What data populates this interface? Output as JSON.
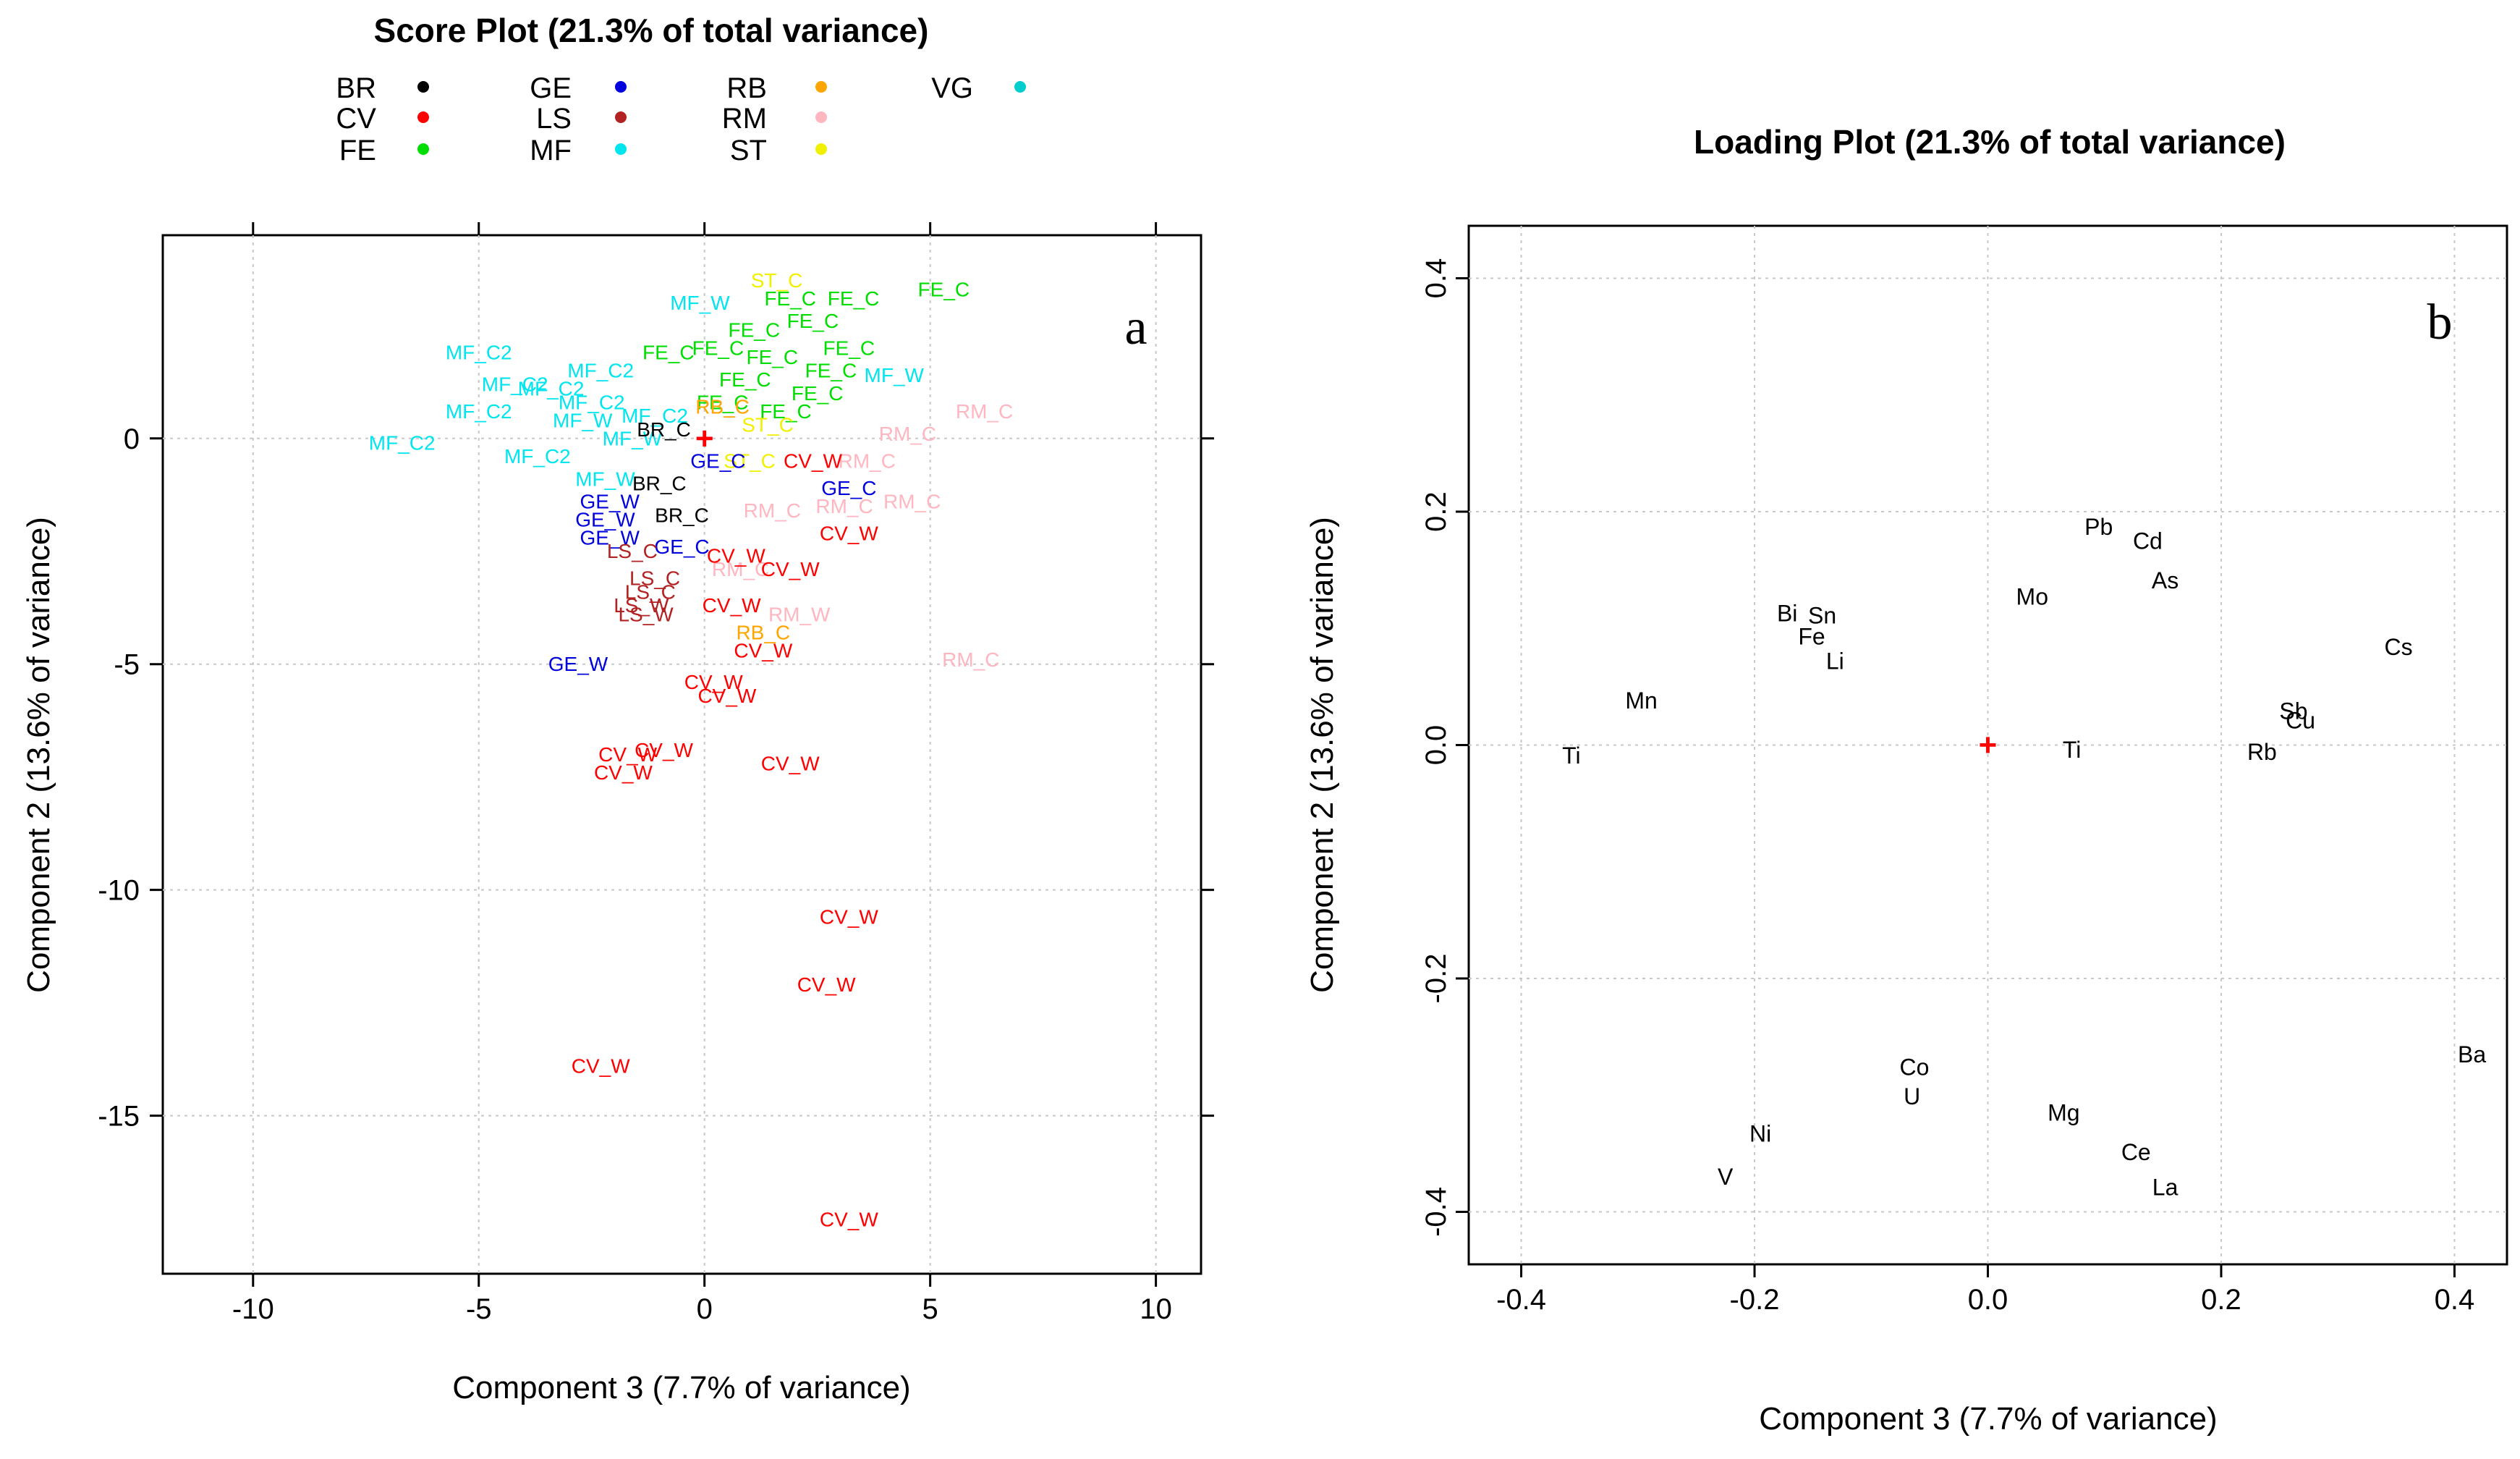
{
  "chart_data": [
    {
      "type": "scatter",
      "panel_label": "a",
      "title": "Score Plot (21.3% of total variance)",
      "xlabel": "Component 3 (7.7% of variance)",
      "ylabel": "Component 2 (13.6% of variance)",
      "xlim": [
        -12,
        11
      ],
      "ylim": [
        -18.5,
        4.5
      ],
      "xticks": [
        -10,
        -5,
        0,
        5,
        10
      ],
      "yticks": [
        0,
        -5,
        -10,
        -15
      ],
      "grid": true,
      "legend": [
        {
          "code": "BR",
          "color": "#000000"
        },
        {
          "code": "CV",
          "color": "#ff0000"
        },
        {
          "code": "FE",
          "color": "#00dd00"
        },
        {
          "code": "GE",
          "color": "#0000dd"
        },
        {
          "code": "LS",
          "color": "#b22222"
        },
        {
          "code": "MF",
          "color": "#00e5ee"
        },
        {
          "code": "RB",
          "color": "#ffa500"
        },
        {
          "code": "RM",
          "color": "#ffb6c1"
        },
        {
          "code": "ST",
          "color": "#f0f000"
        },
        {
          "code": "VG",
          "color": "#00cdcd"
        }
      ],
      "origin_marker": {
        "x": 0,
        "y": 0,
        "symbol": "+",
        "color": "#ff0000"
      },
      "points": [
        {
          "label": "MF_C2",
          "group": "MF",
          "x": -5.0,
          "y": 1.9
        },
        {
          "label": "MF_C2",
          "group": "MF",
          "x": -4.2,
          "y": 1.2
        },
        {
          "label": "MF_C2",
          "group": "MF",
          "x": -3.4,
          "y": 1.1
        },
        {
          "label": "MF_C2",
          "group": "MF",
          "x": -2.3,
          "y": 1.5
        },
        {
          "label": "MF_C2",
          "group": "MF",
          "x": -5.0,
          "y": 0.6
        },
        {
          "label": "MF_C2",
          "group": "MF",
          "x": -6.7,
          "y": -0.1
        },
        {
          "label": "MF_C2",
          "group": "MF",
          "x": -3.7,
          "y": -0.4
        },
        {
          "label": "MF_C2",
          "group": "MF",
          "x": -2.5,
          "y": 0.8
        },
        {
          "label": "MF_W",
          "group": "MF",
          "x": -0.1,
          "y": 3.0
        },
        {
          "label": "MF_W",
          "group": "MF",
          "x": 4.2,
          "y": 1.4
        },
        {
          "label": "MF_W",
          "group": "MF",
          "x": -2.7,
          "y": 0.4
        },
        {
          "label": "MF_W",
          "group": "MF",
          "x": -2.2,
          "y": -0.9
        },
        {
          "label": "MF_W",
          "group": "MF",
          "x": -1.6,
          "y": 0.0
        },
        {
          "label": "MF_C2",
          "group": "MF",
          "x": -1.1,
          "y": 0.5
        },
        {
          "label": "FE_C",
          "group": "FE",
          "x": 5.3,
          "y": 3.3
        },
        {
          "label": "FE_C",
          "group": "FE",
          "x": 3.3,
          "y": 3.1
        },
        {
          "label": "FE_C",
          "group": "FE",
          "x": 1.9,
          "y": 3.1
        },
        {
          "label": "FE_C",
          "group": "FE",
          "x": 2.4,
          "y": 2.6
        },
        {
          "label": "FE_C",
          "group": "FE",
          "x": 1.1,
          "y": 2.4
        },
        {
          "label": "FE_C",
          "group": "FE",
          "x": 0.3,
          "y": 2.0
        },
        {
          "label": "FE_C",
          "group": "FE",
          "x": 3.2,
          "y": 2.0
        },
        {
          "label": "FE_C",
          "group": "FE",
          "x": 1.5,
          "y": 1.8
        },
        {
          "label": "FE_C",
          "group": "FE",
          "x": -0.8,
          "y": 1.9
        },
        {
          "label": "FE_C",
          "group": "FE",
          "x": 2.8,
          "y": 1.5
        },
        {
          "label": "FE_C",
          "group": "FE",
          "x": 0.9,
          "y": 1.3
        },
        {
          "label": "FE_C",
          "group": "FE",
          "x": 2.5,
          "y": 1.0
        },
        {
          "label": "FE_C",
          "group": "FE",
          "x": 0.4,
          "y": 0.8
        },
        {
          "label": "FE_C",
          "group": "FE",
          "x": 1.8,
          "y": 0.6
        },
        {
          "label": "ST_C",
          "group": "ST",
          "x": 1.6,
          "y": 3.5
        },
        {
          "label": "ST_C",
          "group": "ST",
          "x": 1.4,
          "y": 0.3
        },
        {
          "label": "ST_C",
          "group": "ST",
          "x": 1.0,
          "y": -0.5
        },
        {
          "label": "RB_C",
          "group": "RB",
          "x": 0.4,
          "y": 0.7
        },
        {
          "label": "RB_C",
          "group": "RB",
          "x": 1.3,
          "y": -4.3
        },
        {
          "label": "RM_C",
          "group": "RM",
          "x": 6.2,
          "y": 0.6
        },
        {
          "label": "RM_C",
          "group": "RM",
          "x": 4.5,
          "y": 0.1
        },
        {
          "label": "RM_C",
          "group": "RM",
          "x": 3.6,
          "y": -0.5
        },
        {
          "label": "RM_C",
          "group": "RM",
          "x": 4.6,
          "y": -1.4
        },
        {
          "label": "RM_C",
          "group": "RM",
          "x": 3.1,
          "y": -1.5
        },
        {
          "label": "RM_C",
          "group": "RM",
          "x": 1.5,
          "y": -1.6
        },
        {
          "label": "RM_C",
          "group": "RM",
          "x": 0.8,
          "y": -2.9
        },
        {
          "label": "RM_W",
          "group": "RM",
          "x": 2.1,
          "y": -3.9
        },
        {
          "label": "RM_C",
          "group": "RM",
          "x": 5.9,
          "y": -4.9
        },
        {
          "label": "CV_W",
          "group": "CV",
          "x": 2.4,
          "y": -0.5
        },
        {
          "label": "CV_W",
          "group": "CV",
          "x": 3.2,
          "y": -2.1
        },
        {
          "label": "CV_W",
          "group": "CV",
          "x": 0.7,
          "y": -2.6
        },
        {
          "label": "CV_W",
          "group": "CV",
          "x": 1.9,
          "y": -2.9
        },
        {
          "label": "CV_W",
          "group": "CV",
          "x": 0.6,
          "y": -3.7
        },
        {
          "label": "CV_W",
          "group": "CV",
          "x": 1.3,
          "y": -4.7
        },
        {
          "label": "CV_W",
          "group": "CV",
          "x": 0.2,
          "y": -5.4
        },
        {
          "label": "CV_W",
          "group": "CV",
          "x": 0.5,
          "y": -5.7
        },
        {
          "label": "CV_W",
          "group": "CV",
          "x": -0.9,
          "y": -6.9
        },
        {
          "label": "CV_W",
          "group": "CV",
          "x": -1.7,
          "y": -7.0
        },
        {
          "label": "CV_W",
          "group": "CV",
          "x": -1.8,
          "y": -7.4
        },
        {
          "label": "CV_W",
          "group": "CV",
          "x": 1.9,
          "y": -7.2
        },
        {
          "label": "CV_W",
          "group": "CV",
          "x": 3.2,
          "y": -10.6
        },
        {
          "label": "CV_W",
          "group": "CV",
          "x": 2.7,
          "y": -12.1
        },
        {
          "label": "CV_W",
          "group": "CV",
          "x": -2.3,
          "y": -13.9
        },
        {
          "label": "CV_W",
          "group": "CV",
          "x": 3.2,
          "y": -17.3
        },
        {
          "label": "GE_C",
          "group": "GE",
          "x": 3.2,
          "y": -1.1
        },
        {
          "label": "GE_C",
          "group": "GE",
          "x": 0.3,
          "y": -0.5
        },
        {
          "label": "GE_C",
          "group": "GE",
          "x": -0.5,
          "y": -2.4
        },
        {
          "label": "GE_W",
          "group": "GE",
          "x": -2.1,
          "y": -1.4
        },
        {
          "label": "GE_W",
          "group": "GE",
          "x": -2.2,
          "y": -1.8
        },
        {
          "label": "GE_W",
          "group": "GE",
          "x": -2.1,
          "y": -2.2
        },
        {
          "label": "GE_W",
          "group": "GE",
          "x": -2.8,
          "y": -5.0
        },
        {
          "label": "BR_C",
          "group": "BR",
          "x": -0.9,
          "y": 0.2
        },
        {
          "label": "BR_C",
          "group": "BR",
          "x": -1.0,
          "y": -1.0
        },
        {
          "label": "BR_C",
          "group": "BR",
          "x": -0.5,
          "y": -1.7
        },
        {
          "label": "LS_C",
          "group": "LS",
          "x": -1.6,
          "y": -2.5
        },
        {
          "label": "LS_C",
          "group": "LS",
          "x": -1.1,
          "y": -3.1
        },
        {
          "label": "LS_C",
          "group": "LS",
          "x": -1.2,
          "y": -3.4
        },
        {
          "label": "LS_W",
          "group": "LS",
          "x": -1.3,
          "y": -3.9
        },
        {
          "label": "LS_W",
          "group": "LS",
          "x": -1.4,
          "y": -3.7
        }
      ]
    },
    {
      "type": "scatter",
      "panel_label": "b",
      "title": "Loading Plot (21.3% of total variance)",
      "xlabel": "Component 3 (7.7% of variance)",
      "ylabel": "Component 2 (13.6% of variance)",
      "xlim": [
        -0.445,
        0.445
      ],
      "ylim": [
        -0.445,
        0.445
      ],
      "xticks": [
        -0.4,
        -0.2,
        0.0,
        0.2,
        0.4
      ],
      "yticks": [
        0.4,
        0.2,
        0.0,
        -0.2,
        -0.4
      ],
      "xtick_labels": [
        "-0.4",
        "-0.2",
        "0.0",
        "0.2",
        "0.4"
      ],
      "ytick_labels": [
        "0.4",
        "0.2",
        "0.0",
        "-0.2",
        "-0.4"
      ],
      "grid": true,
      "origin_marker": {
        "x": 0,
        "y": 0,
        "symbol": "+",
        "color": "#ff0000"
      },
      "points": [
        {
          "label": "Pb",
          "x": 0.095,
          "y": 0.187
        },
        {
          "label": "Cd",
          "x": 0.137,
          "y": 0.175
        },
        {
          "label": "As",
          "x": 0.152,
          "y": 0.141
        },
        {
          "label": "Mo",
          "x": 0.038,
          "y": 0.127
        },
        {
          "label": "Bi",
          "x": -0.172,
          "y": 0.113
        },
        {
          "label": "Sn",
          "x": -0.142,
          "y": 0.111
        },
        {
          "label": "Fe",
          "x": -0.151,
          "y": 0.093
        },
        {
          "label": "Li",
          "x": -0.131,
          "y": 0.072
        },
        {
          "label": "Cs",
          "x": 0.352,
          "y": 0.084
        },
        {
          "label": "Mn",
          "x": -0.297,
          "y": 0.038
        },
        {
          "label": "Ti",
          "x": -0.357,
          "y": -0.009
        },
        {
          "label": "Ti",
          "x": 0.072,
          "y": -0.004
        },
        {
          "label": "Sb",
          "x": 0.262,
          "y": 0.029
        },
        {
          "label": "Cu",
          "x": 0.268,
          "y": 0.021
        },
        {
          "label": "Rb",
          "x": 0.235,
          "y": -0.006
        },
        {
          "label": "Ba",
          "x": 0.415,
          "y": -0.265
        },
        {
          "label": "Co",
          "x": -0.063,
          "y": -0.276
        },
        {
          "label": "U",
          "x": -0.065,
          "y": -0.301
        },
        {
          "label": "Mg",
          "x": 0.065,
          "y": -0.315
        },
        {
          "label": "Ni",
          "x": -0.195,
          "y": -0.333
        },
        {
          "label": "Ce",
          "x": 0.127,
          "y": -0.349
        },
        {
          "label": "V",
          "x": -0.225,
          "y": -0.37
        },
        {
          "label": "La",
          "x": 0.152,
          "y": -0.379
        }
      ]
    }
  ]
}
